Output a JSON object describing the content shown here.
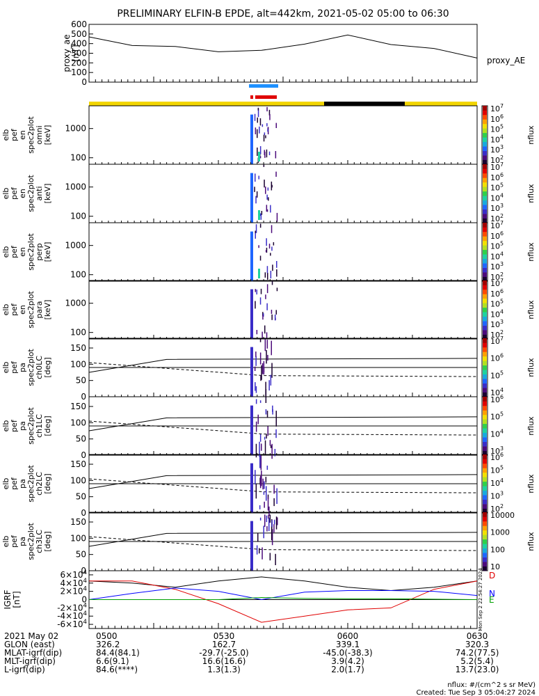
{
  "title": "PRELIMINARY ELFIN-B EPDE, alt=442km, 2021-05-02 05:00 to 06:30",
  "ae_panel": {
    "ylabel": "proxy_ae\n[nT]",
    "series_label": "proxy_AE",
    "ticks": [
      "0",
      "100",
      "200",
      "300",
      "400",
      "500",
      "600"
    ]
  },
  "science_bars": {
    "colors": {
      "yellow": "#f2d500",
      "black": "#000000",
      "blue": "#1e90ff",
      "red": "#e00000"
    }
  },
  "energy_panels": [
    {
      "ylabel": [
        "elb",
        "pef",
        "en",
        "spec2plot",
        "omni",
        "[keV]"
      ],
      "cbar_ticks": [
        "10^2",
        "10^3",
        "10^4",
        "10^5",
        "10^6",
        "10^7"
      ]
    },
    {
      "ylabel": [
        "elb",
        "pef",
        "en",
        "spec2plot",
        "anti",
        "[keV]"
      ],
      "cbar_ticks": [
        "10^2",
        "10^3",
        "10^4",
        "10^5",
        "10^6",
        "10^7"
      ]
    },
    {
      "ylabel": [
        "elb",
        "pef",
        "en",
        "spec2plot",
        "perp",
        "[keV]"
      ],
      "cbar_ticks": [
        "10^2",
        "10^3",
        "10^4",
        "10^5",
        "10^6",
        "10^7"
      ]
    },
    {
      "ylabel": [
        "elb",
        "pef",
        "en",
        "spec2plot",
        "para",
        "[keV]"
      ],
      "cbar_ticks": [
        "10^2",
        "10^3",
        "10^4",
        "10^5",
        "10^6",
        "10^7"
      ]
    }
  ],
  "energy_ticks": [
    "100",
    "1000"
  ],
  "pa_panels": [
    {
      "ylabel": [
        "elb",
        "pef",
        "pa",
        "spec2plot",
        "ch0LC",
        "[deg]"
      ],
      "cbar_ticks": [
        "10^4",
        "10^5",
        "10^6",
        "10^7"
      ]
    },
    {
      "ylabel": [
        "elb",
        "pef",
        "pa",
        "spec2plot",
        "ch1LC",
        "[deg]"
      ],
      "cbar_ticks": [
        "10^3",
        "10^4",
        "10^5",
        "10^6"
      ]
    },
    {
      "ylabel": [
        "elb",
        "pef",
        "pa",
        "spec2plot",
        "ch2LC",
        "[deg]"
      ],
      "cbar_ticks": [
        "10^2",
        "10^3",
        "10^4",
        "10^5",
        "10^6"
      ]
    },
    {
      "ylabel": [
        "elb",
        "pef",
        "pa",
        "spec2plot",
        "ch3LC",
        "[deg]"
      ],
      "cbar_ticks": [
        "10",
        "100",
        "1000",
        "10000"
      ]
    }
  ],
  "pa_ticks": [
    "0",
    "50",
    "100",
    "150"
  ],
  "cbar_label": "nflux",
  "igrf_panel": {
    "ylabel": "IGRF\n[nT]",
    "ticks": [
      "-6×10^4",
      "-4×10^4",
      "-2×10^4",
      "0",
      "2×10^4",
      "4×10^4",
      "6×10^4"
    ],
    "legend": [
      "D",
      "N",
      "E"
    ],
    "legend_colors": [
      "#e00000",
      "#0000ff",
      "#00a000"
    ],
    "side_text": "Mon Sep 2 22:54:27 2024"
  },
  "footer": {
    "rows": [
      {
        "label": "2021 May 02",
        "values": [
          "0500",
          "0530",
          "0600",
          "0630"
        ]
      },
      {
        "label": "GLON (east)",
        "values": [
          "326.2",
          "162.7",
          "339.1",
          "320.3"
        ]
      },
      {
        "label": "MLAT-igrf(dip)",
        "values": [
          "84.4(84.1)",
          "-29.7(-25.0)",
          "-45.0(-38.3)",
          "74.2(77.5)"
        ]
      },
      {
        "label": "MLT-igrf(dip)",
        "values": [
          "6.6(9.1)",
          "16.6(16.6)",
          "3.9(4.2)",
          "5.2(5.4)"
        ]
      },
      {
        "label": "L-igrf(dip)",
        "values": [
          "84.6(****)",
          "1.3(1.3)",
          "2.0(1.7)",
          "13.7(23.0)"
        ]
      }
    ],
    "units_note": "nflux: #/(cm^2 s sr MeV)",
    "created": "Created: Tue Sep  3 05:04:27 2024"
  },
  "chart_data": [
    {
      "type": "line",
      "title": "PRELIMINARY ELFIN-B EPDE, alt=442km, 2021-05-02 05:00 to 06:30",
      "ylabel": "proxy_ae [nT]",
      "ylim": [
        0,
        600
      ],
      "series": [
        {
          "name": "proxy_AE",
          "x": [
            "05:00",
            "05:10",
            "05:20",
            "05:30",
            "05:40",
            "05:50",
            "06:00",
            "06:10",
            "06:20",
            "06:30"
          ],
          "values": [
            470,
            380,
            370,
            315,
            330,
            395,
            490,
            390,
            350,
            250
          ]
        }
      ]
    },
    {
      "type": "heatmap",
      "ylabel": "elb pef en spec2plot omni [keV]",
      "ylim": [
        60,
        6000
      ],
      "log": true,
      "crange": [
        100,
        10000000
      ]
    },
    {
      "type": "heatmap",
      "ylabel": "elb pef en spec2plot anti [keV]",
      "ylim": [
        60,
        6000
      ],
      "log": true
    },
    {
      "type": "heatmap",
      "ylabel": "elb pef en spec2plot perp [keV]",
      "ylim": [
        60,
        6000
      ],
      "log": true
    },
    {
      "type": "heatmap",
      "ylabel": "elb pef en spec2plot para [keV]",
      "ylim": [
        60,
        6000
      ],
      "log": true
    },
    {
      "type": "heatmap",
      "ylabel": "elb pef pa spec2plot ch0LC [deg]",
      "ylim": [
        0,
        180
      ]
    },
    {
      "type": "heatmap",
      "ylabel": "elb pef pa spec2plot ch1LC [deg]",
      "ylim": [
        0,
        180
      ]
    },
    {
      "type": "heatmap",
      "ylabel": "elb pef pa spec2plot ch2LC [deg]",
      "ylim": [
        0,
        180
      ]
    },
    {
      "type": "heatmap",
      "ylabel": "elb pef pa spec2plot ch3LC [deg]",
      "ylim": [
        0,
        180
      ]
    },
    {
      "type": "line",
      "ylabel": "IGRF [nT]",
      "ylim": [
        -70000,
        70000
      ],
      "series": [
        {
          "name": "D",
          "values": [
            45000,
            45000,
            25000,
            -10000,
            -55000,
            -40000,
            -25000,
            -20000,
            25000,
            45000
          ]
        },
        {
          "name": "N",
          "values": [
            0,
            15000,
            28000,
            20000,
            0,
            18000,
            22000,
            22000,
            20000,
            10000
          ]
        },
        {
          "name": "E",
          "values": [
            0,
            0,
            0,
            0,
            5000,
            3000,
            2000,
            2000,
            1000,
            0
          ]
        }
      ]
    }
  ]
}
